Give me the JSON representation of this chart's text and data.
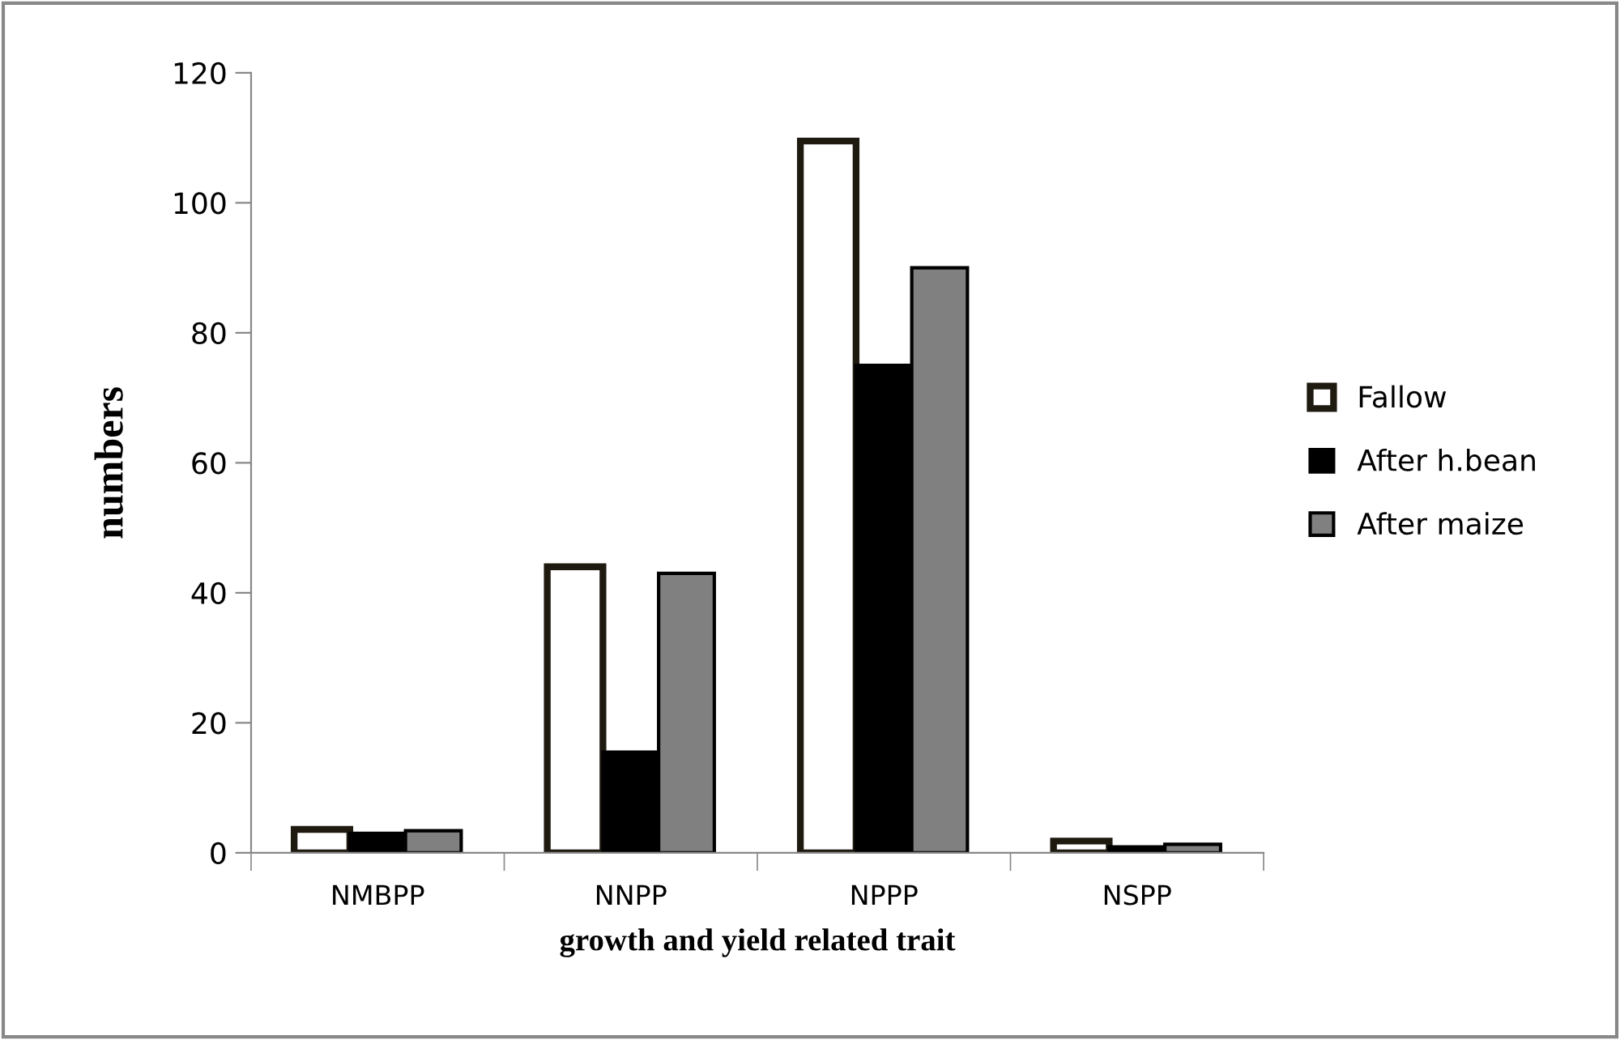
{
  "chart_data": {
    "type": "bar",
    "xlabel": "growth and yield related trait",
    "ylabel": "numbers",
    "categories": [
      "NMBPP",
      "NNPP",
      "NPPP",
      "NSPP"
    ],
    "series": [
      {
        "name": "Fallow",
        "color": "#ffffff",
        "values": [
          3.6,
          44,
          109.5,
          1.8
        ]
      },
      {
        "name": "After h.bean",
        "color": "#000000",
        "values": [
          3.0,
          15.5,
          75,
          0.9
        ]
      },
      {
        "name": "After maize",
        "color": "#808080",
        "values": [
          3.4,
          43,
          90,
          1.3
        ]
      }
    ],
    "ylim": [
      0,
      120
    ],
    "yticks": [
      0,
      20,
      40,
      60,
      80,
      100,
      120
    ],
    "grid": false,
    "legend": "right"
  }
}
